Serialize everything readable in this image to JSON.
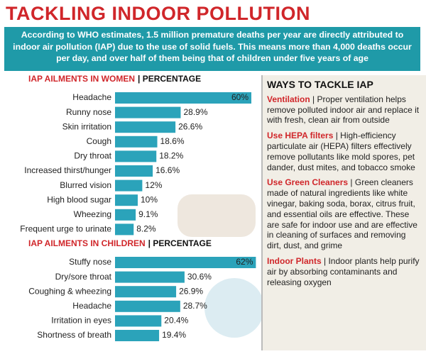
{
  "title": "TACKLING INDOOR POLLUTION",
  "intro": "According to WHO estimates, 1.5 million premature deaths per year are directly attributed to indoor air pollution (IAP) due to the use of solid fuels. This means more than 4,000 deaths occur per day, and over half of them being that of children under five years of age",
  "chart_data": [
    {
      "type": "bar",
      "title": "IAP AILMENTS IN WOMEN",
      "subtitle": "| PERCENTAGE",
      "color": "#2ba3ba",
      "categories": [
        "Headache",
        "Runny nose",
        "Skin irritation",
        "Cough",
        "Dry throat",
        "Increased thirst/hunger",
        "Blurred vision",
        "High blood sugar",
        "Wheezing",
        "Frequent urge to urinate"
      ],
      "values": [
        60,
        28.9,
        26.6,
        18.6,
        18.2,
        16.6,
        12,
        10,
        9.1,
        8.2
      ],
      "value_labels": [
        "60%",
        "28.9%",
        "26.6%",
        "18.6%",
        "18.2%",
        "16.6%",
        "12%",
        "10%",
        "9.1%",
        "8.2%"
      ]
    },
    {
      "type": "bar",
      "title": "IAP AILMENTS IN CHILDREN",
      "subtitle": "| PERCENTAGE",
      "color": "#2ba3ba",
      "categories": [
        "Stuffy nose",
        "Dry/sore throat",
        "Coughing & wheezing",
        "Headache",
        "Irritation in eyes",
        "Shortness of breath"
      ],
      "values": [
        62,
        30.6,
        26.9,
        28.7,
        20.4,
        19.4
      ],
      "value_labels": [
        "62%",
        "30.6%",
        "26.9%",
        "28.7%",
        "20.4%",
        "19.4%"
      ]
    }
  ],
  "sidebar": {
    "title": "WAYS TO TACKLE IAP",
    "items": [
      {
        "heading": "Ventilation",
        "text": "| Proper ventilation helps remove polluted indoor air and replace it with fresh, clean air from outside"
      },
      {
        "heading": "Use HEPA filters",
        "text": "| High-efficiency particulate air (HEPA) filters effectively remove pollutants like mold spores, pet dander, dust mites, and tobacco smoke"
      },
      {
        "heading": "Use Green Cleaners",
        "text": "| Green cleaners made of natural ingredients like white vinegar, baking soda, borax, citrus fruit, and essential oils are effective. These are safe for indoor use and are effective in cleaning of surfaces and removing dirt, dust, and grime"
      },
      {
        "heading": "Indoor Plants",
        "text": "| Indoor plants help purify air by absorbing contaminants and releasing oxygen"
      }
    ]
  }
}
